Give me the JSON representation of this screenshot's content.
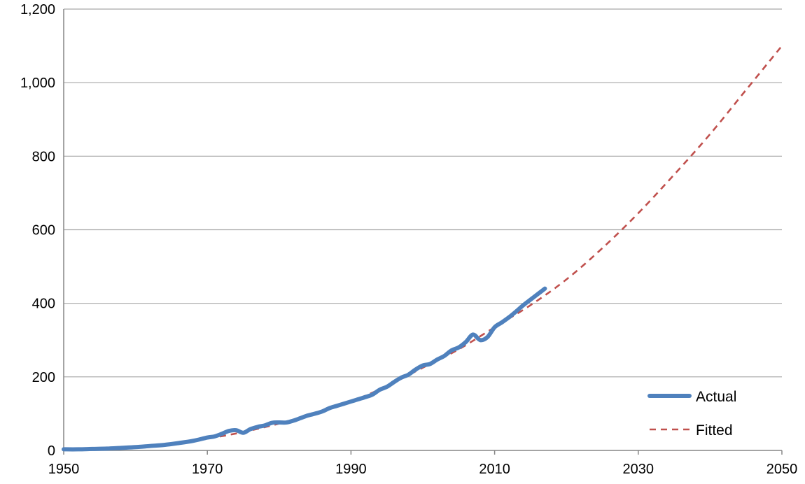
{
  "chart_data": {
    "type": "line",
    "title": "",
    "xlabel": "",
    "ylabel": "",
    "xlim": [
      1950,
      2050
    ],
    "ylim": [
      0,
      1200
    ],
    "xticks": [
      1950,
      1970,
      1990,
      2010,
      2030,
      2050
    ],
    "xtick_labels": [
      "1950",
      "1970",
      "1990",
      "2010",
      "2030",
      "2050"
    ],
    "yticks": [
      0,
      200,
      400,
      600,
      800,
      1000,
      1200
    ],
    "ytick_labels": [
      "0",
      "200",
      "400",
      "600",
      "800",
      "1,000",
      "1,200"
    ],
    "grid": "horizontal",
    "legend_position": "bottom-right",
    "series": [
      {
        "name": "Actual",
        "color": "#4f81bd",
        "style": "solid",
        "x": [
          1950,
          1952,
          1954,
          1956,
          1958,
          1960,
          1962,
          1964,
          1966,
          1968,
          1970,
          1971,
          1972,
          1973,
          1974,
          1975,
          1976,
          1977,
          1978,
          1979,
          1980,
          1981,
          1982,
          1983,
          1984,
          1985,
          1986,
          1987,
          1988,
          1989,
          1990,
          1991,
          1992,
          1993,
          1994,
          1995,
          1996,
          1997,
          1998,
          1999,
          2000,
          2001,
          2002,
          2003,
          2004,
          2005,
          2006,
          2007,
          2008,
          2009,
          2010,
          2011,
          2012,
          2013,
          2014,
          2015,
          2016,
          2017
        ],
        "y": [
          3,
          3,
          4,
          5,
          7,
          9,
          12,
          15,
          20,
          26,
          35,
          38,
          45,
          53,
          55,
          48,
          58,
          64,
          68,
          75,
          76,
          76,
          81,
          88,
          95,
          100,
          106,
          115,
          121,
          127,
          133,
          139,
          145,
          152,
          165,
          173,
          186,
          198,
          206,
          220,
          231,
          235,
          247,
          257,
          272,
          280,
          295,
          315,
          300,
          308,
          335,
          348,
          362,
          378,
          395,
          410,
          425,
          440
        ]
      },
      {
        "name": "Fitted",
        "color": "#c0504d",
        "style": "dashed",
        "x": [
          1950,
          1955,
          1960,
          1965,
          1970,
          1975,
          1980,
          1985,
          1990,
          1995,
          2000,
          2005,
          2010,
          2015,
          2020,
          2025,
          2030,
          2035,
          2040,
          2045,
          2050
        ],
        "y": [
          3,
          5,
          10,
          18,
          32,
          50,
          73,
          100,
          133,
          175,
          225,
          275,
          335,
          395,
          465,
          550,
          645,
          750,
          860,
          980,
          1100
        ]
      }
    ]
  }
}
